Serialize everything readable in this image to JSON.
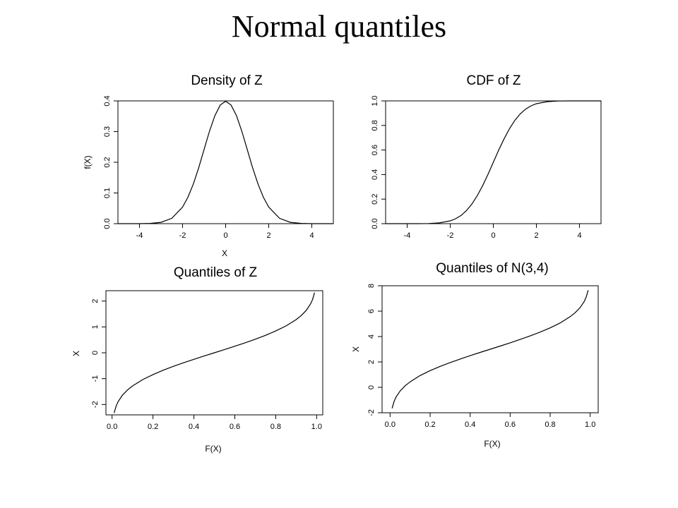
{
  "slide": {
    "title": "Normal quantiles"
  },
  "chart_data": [
    {
      "type": "line",
      "title": "Density of Z",
      "xlabel": "X",
      "ylabel": "f(X)",
      "xlim": [
        -5,
        5
      ],
      "ylim": [
        0,
        0.4
      ],
      "xticks": [
        -4,
        -2,
        0,
        2,
        4
      ],
      "xtick_labels": [
        "-4",
        "-2",
        "0",
        "2",
        "4"
      ],
      "yticks": [
        0,
        0.1,
        0.2,
        0.3,
        0.4
      ],
      "ytick_labels": [
        "0.0",
        "0.1",
        "0.2",
        "0.3",
        "0.4"
      ],
      "grid": false,
      "series": [
        {
          "x": [
            -5,
            -4.5,
            -4,
            -3.5,
            -3,
            -2.5,
            -2,
            -1.75,
            -1.5,
            -1.25,
            -1,
            -0.75,
            -0.5,
            -0.25,
            0,
            0.25,
            0.5,
            0.75,
            1,
            1.25,
            1.5,
            1.75,
            2,
            2.5,
            3,
            3.5,
            4,
            4.5,
            5
          ],
          "y": [
            0,
            0,
            0.0001,
            0.0009,
            0.0044,
            0.0175,
            0.054,
            0.0863,
            0.1295,
            0.1826,
            0.242,
            0.3011,
            0.3521,
            0.3867,
            0.3989,
            0.3867,
            0.3521,
            0.3011,
            0.242,
            0.1826,
            0.1295,
            0.0863,
            0.054,
            0.0175,
            0.0044,
            0.0009,
            0.0001,
            0,
            0
          ]
        }
      ]
    },
    {
      "type": "line",
      "title": "CDF of Z",
      "xlabel": "",
      "ylabel": "",
      "xlim": [
        -5,
        5
      ],
      "ylim": [
        0,
        1
      ],
      "xticks": [
        -4,
        -2,
        0,
        2,
        4
      ],
      "xtick_labels": [
        "-4",
        "-2",
        "0",
        "2",
        "4"
      ],
      "yticks": [
        0,
        0.2,
        0.4,
        0.6,
        0.8,
        1.0
      ],
      "ytick_labels": [
        "0.0",
        "0.2",
        "0.4",
        "0.6",
        "0.8",
        "1.0"
      ],
      "grid": false,
      "series": [
        {
          "x": [
            -5,
            -4.5,
            -4,
            -3.5,
            -3,
            -2.5,
            -2,
            -1.75,
            -1.5,
            -1.25,
            -1,
            -0.75,
            -0.5,
            -0.25,
            0,
            0.25,
            0.5,
            0.75,
            1,
            1.25,
            1.5,
            1.75,
            2,
            2.5,
            3,
            3.5,
            4,
            4.5,
            5
          ],
          "y": [
            0,
            0,
            0,
            0.0002,
            0.0013,
            0.0062,
            0.0228,
            0.0401,
            0.0668,
            0.1056,
            0.1587,
            0.2266,
            0.3085,
            0.4013,
            0.5,
            0.5987,
            0.6915,
            0.7734,
            0.8413,
            0.8944,
            0.9332,
            0.9599,
            0.9772,
            0.9938,
            0.9987,
            0.9998,
            1,
            1,
            1
          ]
        }
      ]
    },
    {
      "type": "line",
      "title": "Quantiles of Z",
      "xlabel": "F(X)",
      "ylabel": "X",
      "xlim": [
        0,
        1
      ],
      "ylim": [
        -2.4,
        2.4
      ],
      "xticks": [
        0,
        0.2,
        0.4,
        0.6,
        0.8,
        1.0
      ],
      "xtick_labels": [
        "0.0",
        "0.2",
        "0.4",
        "0.6",
        "0.8",
        "1.0"
      ],
      "yticks": [
        -2,
        -1,
        0,
        1,
        2
      ],
      "ytick_labels": [
        "-2",
        "-1",
        "0",
        "1",
        "2"
      ],
      "grid": false,
      "series": [
        {
          "x": [
            0.01,
            0.02,
            0.03,
            0.05,
            0.075,
            0.1,
            0.15,
            0.2,
            0.25,
            0.3,
            0.35,
            0.4,
            0.45,
            0.5,
            0.55,
            0.6,
            0.65,
            0.7,
            0.75,
            0.8,
            0.85,
            0.9,
            0.925,
            0.95,
            0.97,
            0.98,
            0.99
          ],
          "y": [
            -2.326,
            -2.054,
            -1.881,
            -1.645,
            -1.44,
            -1.282,
            -1.036,
            -0.842,
            -0.674,
            -0.524,
            -0.385,
            -0.253,
            -0.126,
            0,
            0.126,
            0.253,
            0.385,
            0.524,
            0.674,
            0.842,
            1.036,
            1.282,
            1.44,
            1.645,
            1.881,
            2.054,
            2.326
          ]
        }
      ]
    },
    {
      "type": "line",
      "title": "Quantiles of N(3,4)",
      "xlabel": "F(X)",
      "ylabel": "X",
      "xlim": [
        0,
        1
      ],
      "ylim": [
        -2,
        8
      ],
      "xticks": [
        0,
        0.2,
        0.4,
        0.6,
        0.8,
        1.0
      ],
      "xtick_labels": [
        "0.0",
        "0.2",
        "0.4",
        "0.6",
        "0.8",
        "1.0"
      ],
      "yticks": [
        -2,
        0,
        2,
        4,
        6,
        8
      ],
      "ytick_labels": [
        "-2",
        "0",
        "2",
        "4",
        "6",
        "8"
      ],
      "grid": false,
      "series": [
        {
          "x": [
            0.01,
            0.02,
            0.03,
            0.05,
            0.075,
            0.1,
            0.15,
            0.2,
            0.25,
            0.3,
            0.35,
            0.4,
            0.45,
            0.5,
            0.55,
            0.6,
            0.65,
            0.7,
            0.75,
            0.8,
            0.85,
            0.9,
            0.925,
            0.95,
            0.97,
            0.98,
            0.99
          ],
          "y": [
            -1.652,
            -1.108,
            -0.762,
            -0.29,
            0.12,
            0.436,
            0.928,
            1.316,
            1.652,
            1.952,
            2.23,
            2.494,
            2.748,
            3,
            3.252,
            3.506,
            3.77,
            4.048,
            4.348,
            4.684,
            5.072,
            5.564,
            5.88,
            6.29,
            6.762,
            7.108,
            7.652
          ]
        }
      ]
    }
  ]
}
